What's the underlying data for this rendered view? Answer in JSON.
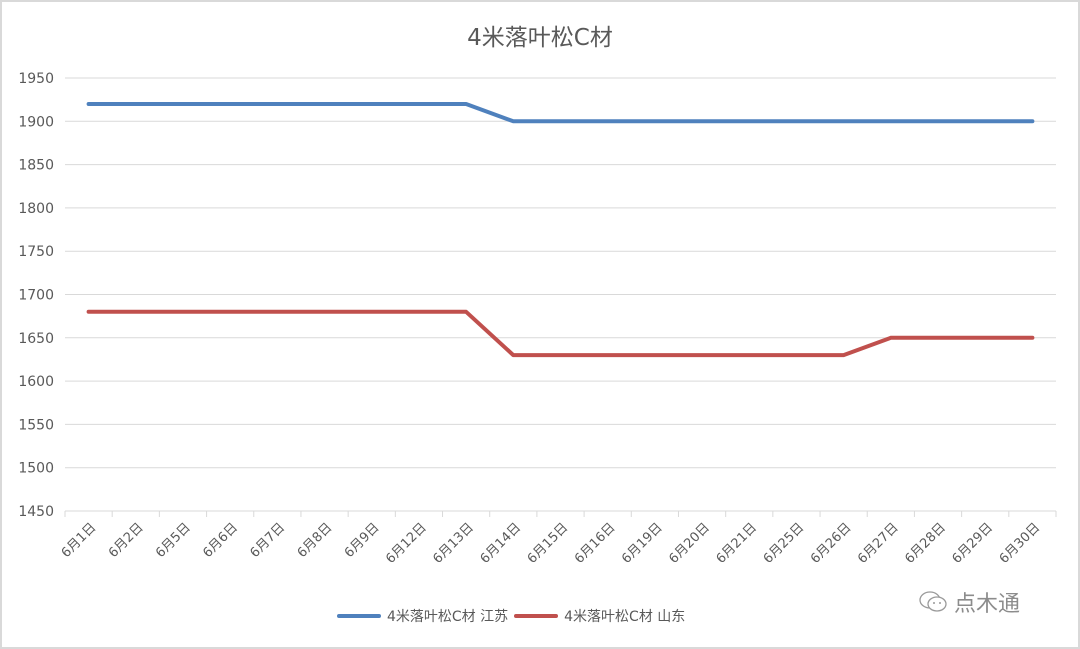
{
  "chart_data": {
    "type": "line",
    "title": "4米落叶松C材",
    "xlabel": "",
    "ylabel": "",
    "ylim": [
      1450,
      1950
    ],
    "yticks": [
      1950,
      1900,
      1850,
      1800,
      1750,
      1700,
      1650,
      1600,
      1550,
      1500,
      1450
    ],
    "grid": true,
    "legend_position": "bottom",
    "categories": [
      "6月1日",
      "6月2日",
      "6月5日",
      "6月6日",
      "6月7日",
      "6月8日",
      "6月9日",
      "6月12日",
      "6月13日",
      "6月14日",
      "6月15日",
      "6月16日",
      "6月19日",
      "6月20日",
      "6月21日",
      "6月25日",
      "6月26日",
      "6月27日",
      "6月28日",
      "6月29日",
      "6月30日"
    ],
    "series": [
      {
        "name": "4米落叶松C材 江苏",
        "color": "#4f81bd",
        "values": [
          1920,
          1920,
          1920,
          1920,
          1920,
          1920,
          1920,
          1920,
          1920,
          1900,
          1900,
          1900,
          1900,
          1900,
          1900,
          1900,
          1900,
          1900,
          1900,
          1900,
          1900
        ]
      },
      {
        "name": "4米落叶松C材 山东",
        "color": "#c0504d",
        "values": [
          1680,
          1680,
          1680,
          1680,
          1680,
          1680,
          1680,
          1680,
          1680,
          1630,
          1630,
          1630,
          1630,
          1630,
          1630,
          1630,
          1630,
          1650,
          1650,
          1650,
          1650
        ]
      }
    ]
  },
  "legend": {
    "items": [
      {
        "label": "4米落叶松C材 江苏",
        "color": "#4f81bd"
      },
      {
        "label": "4米落叶松C材 山东",
        "color": "#c0504d"
      }
    ]
  },
  "watermark": {
    "text": "点木通"
  }
}
